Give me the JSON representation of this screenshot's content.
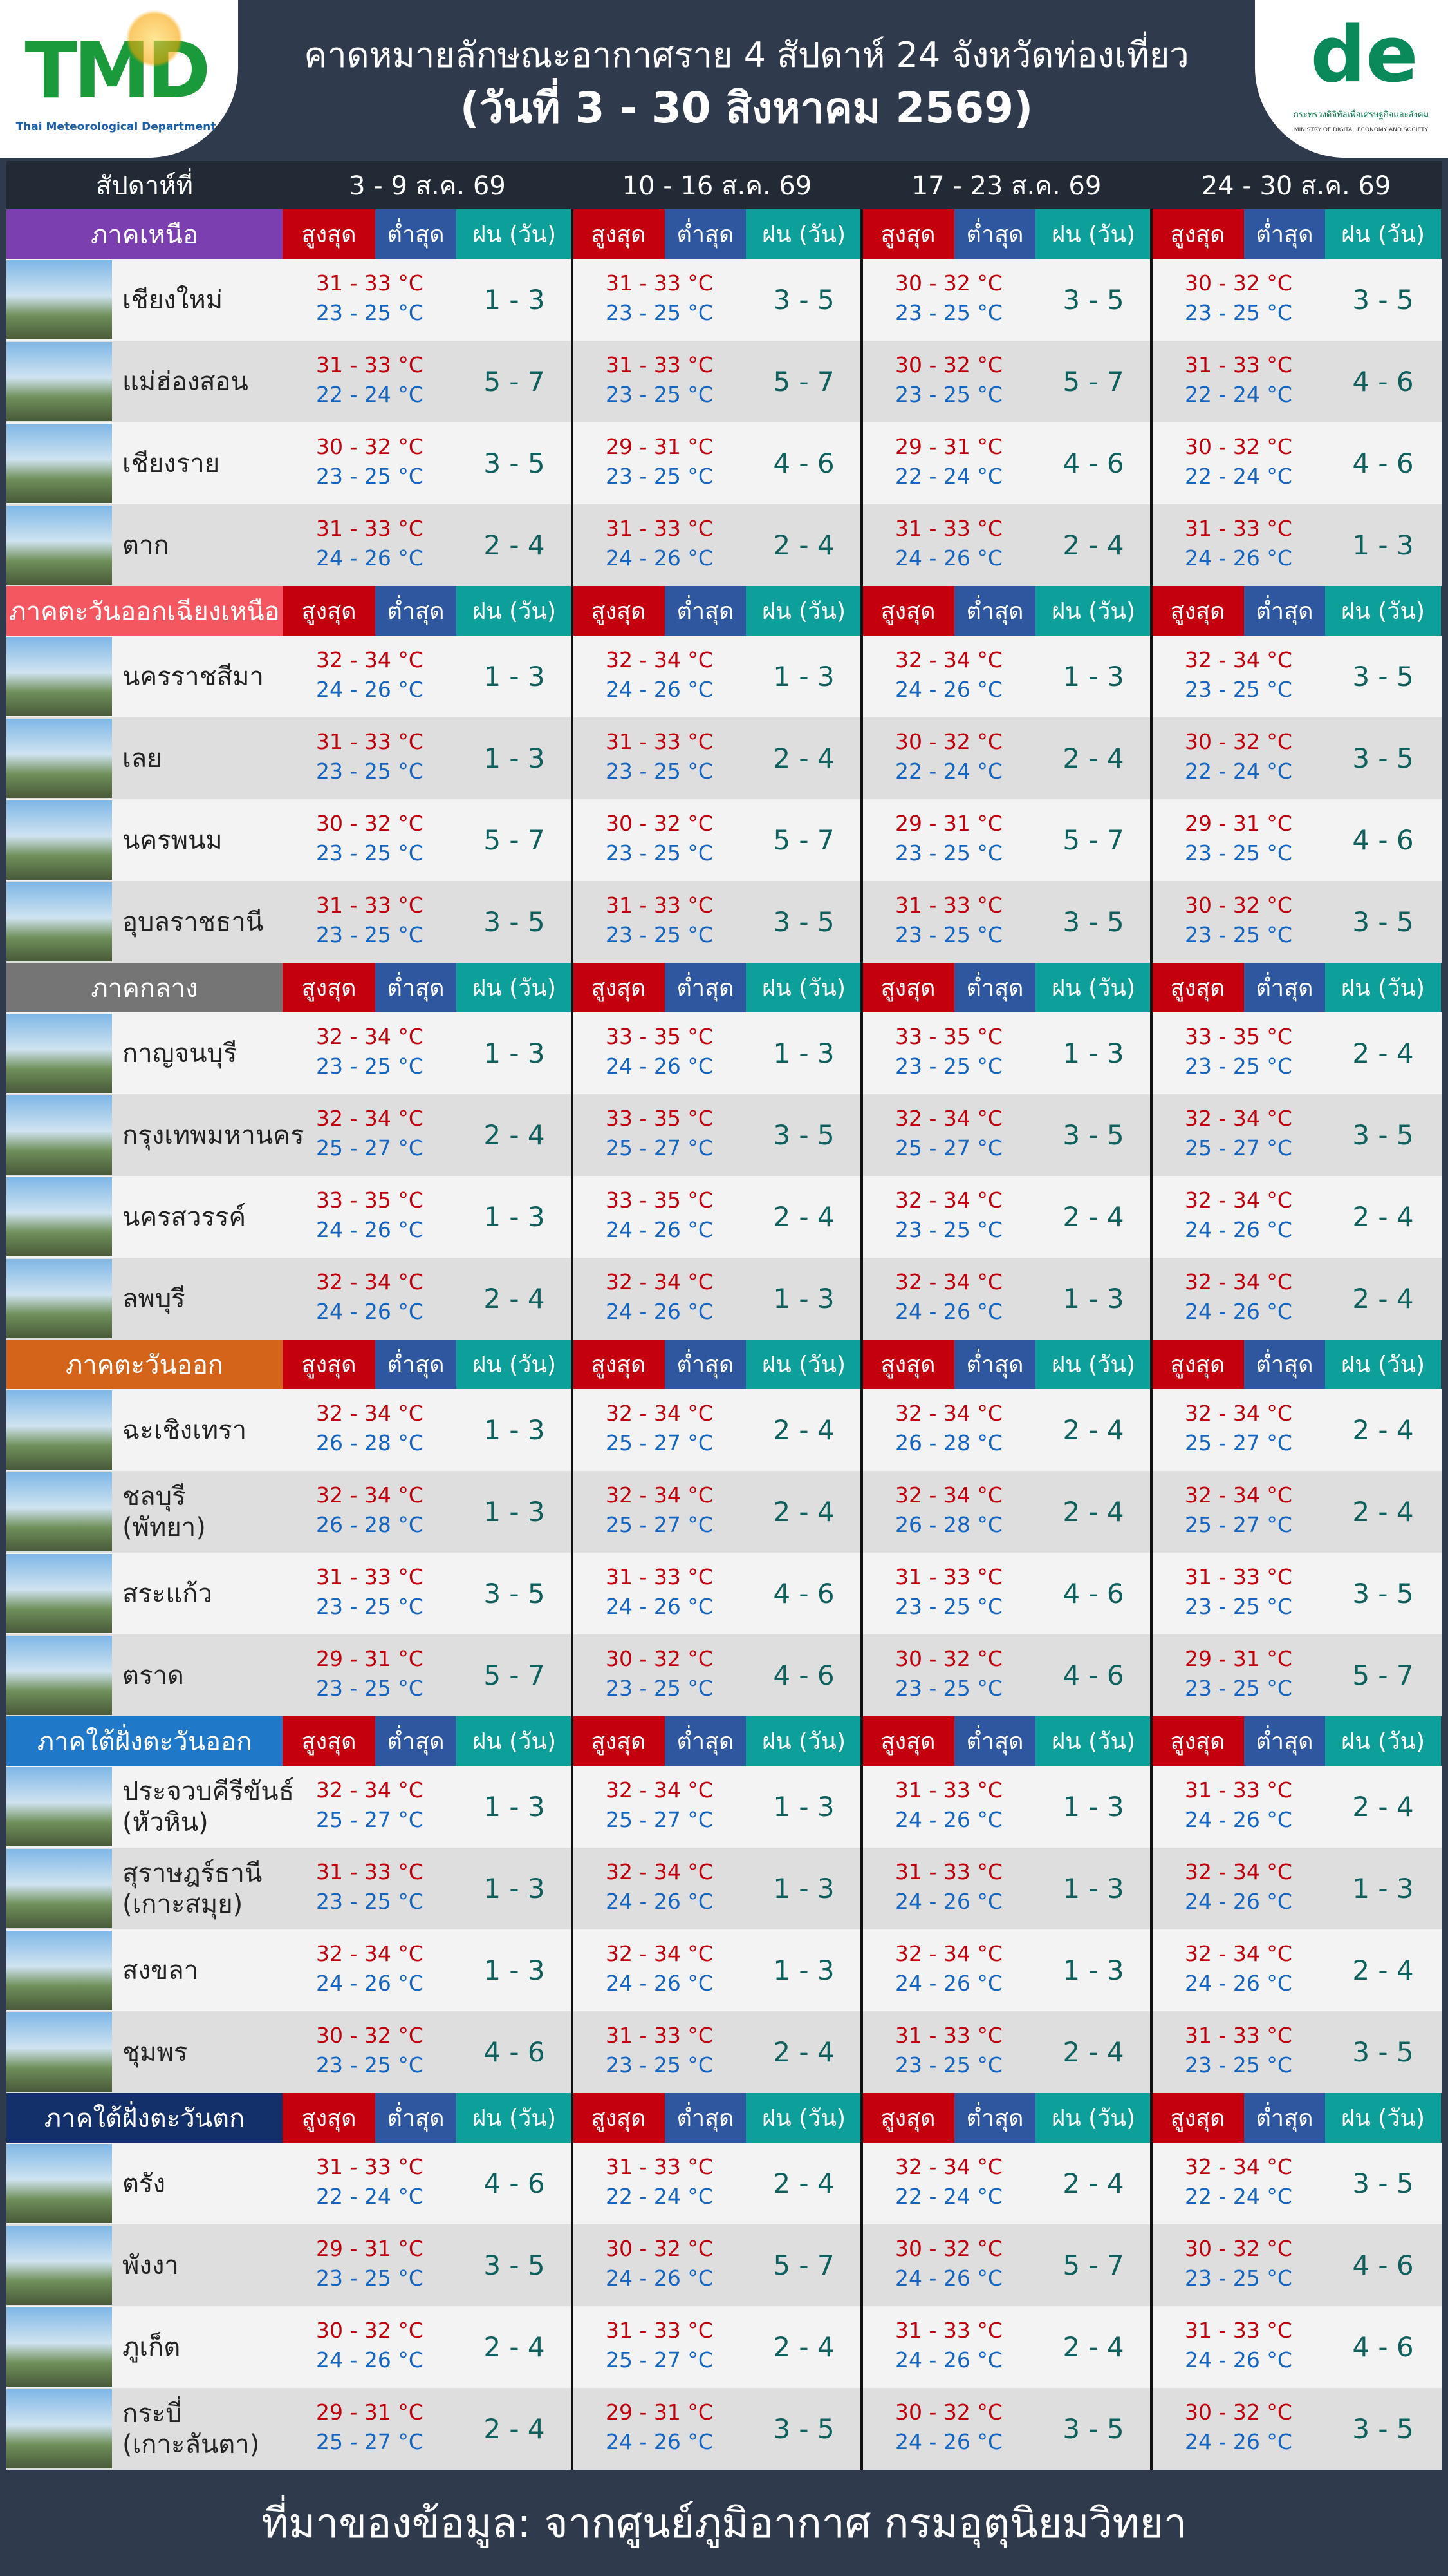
{
  "header": {
    "title": "คาดหมายลักษณะอากาศราย 4 สัปดาห์ 24 จังหวัดท่องเที่ยว",
    "subtitle": "(วันที่ 3 - 30 สิงหาคม 2569)",
    "left_logo": {
      "mark": "TMD",
      "caption": "Thai Meteorological Department"
    },
    "right_logo": {
      "caption_th": "กระทรวงดิจิทัลเพื่อเศรษฐกิจและสังคม",
      "caption_en": "MINISTRY OF DIGITAL ECONOMY AND SOCIETY"
    }
  },
  "table": {
    "week_label": "สัปดาห์ที่",
    "weeks": [
      "3 - 9 ส.ค. 69",
      "10 - 16 ส.ค. 69",
      "17 - 23 ส.ค. 69",
      "24 - 30 ส.ค. 69"
    ],
    "column_labels": {
      "max": "สูงสุด",
      "min": "ต่ำสุด",
      "rain": "ฝน (วัน)"
    },
    "regions": [
      {
        "name": "ภาคเหนือ",
        "color": "#7b3fb0",
        "provinces": [
          {
            "name": "เชียงใหม่",
            "forecast": [
              [
                "31 - 33 °C",
                "23 - 25 °C",
                "1 - 3"
              ],
              [
                "31 - 33 °C",
                "23 - 25 °C",
                "3 - 5"
              ],
              [
                "30 - 32 °C",
                "23 - 25 °C",
                "3 - 5"
              ],
              [
                "30 - 32 °C",
                "23 - 25 °C",
                "3 - 5"
              ]
            ]
          },
          {
            "name": "แม่ฮ่องสอน",
            "forecast": [
              [
                "31 - 33 °C",
                "22 - 24 °C",
                "5 - 7"
              ],
              [
                "31 - 33 °C",
                "23 - 25 °C",
                "5 - 7"
              ],
              [
                "30 - 32 °C",
                "23 - 25 °C",
                "5 - 7"
              ],
              [
                "31 - 33 °C",
                "22 - 24 °C",
                "4 - 6"
              ]
            ]
          },
          {
            "name": "เชียงราย",
            "forecast": [
              [
                "30 - 32 °C",
                "23 - 25 °C",
                "3 - 5"
              ],
              [
                "29 - 31 °C",
                "23 - 25 °C",
                "4 - 6"
              ],
              [
                "29 - 31 °C",
                "22 - 24 °C",
                "4 - 6"
              ],
              [
                "30 - 32 °C",
                "22 - 24 °C",
                "4 - 6"
              ]
            ]
          },
          {
            "name": "ตาก",
            "forecast": [
              [
                "31 - 33 °C",
                "24 - 26 °C",
                "2 - 4"
              ],
              [
                "31 - 33 °C",
                "24 - 26 °C",
                "2 - 4"
              ],
              [
                "31 - 33 °C",
                "24 - 26 °C",
                "2 - 4"
              ],
              [
                "31 - 33 °C",
                "24 - 26 °C",
                "1 - 3"
              ]
            ]
          }
        ]
      },
      {
        "name": "ภาคตะวันออกเฉียงเหนือ",
        "color": "#f4575f",
        "provinces": [
          {
            "name": "นครราชสีมา",
            "forecast": [
              [
                "32 - 34 °C",
                "24 - 26 °C",
                "1 - 3"
              ],
              [
                "32 - 34 °C",
                "24 - 26 °C",
                "1 - 3"
              ],
              [
                "32 - 34 °C",
                "24 - 26 °C",
                "1 - 3"
              ],
              [
                "32 - 34 °C",
                "23 - 25 °C",
                "3 - 5"
              ]
            ]
          },
          {
            "name": "เลย",
            "forecast": [
              [
                "31 - 33 °C",
                "23 - 25 °C",
                "1 - 3"
              ],
              [
                "31 - 33 °C",
                "23 - 25 °C",
                "2 - 4"
              ],
              [
                "30 - 32 °C",
                "22 - 24 °C",
                "2 - 4"
              ],
              [
                "30 - 32 °C",
                "22 - 24 °C",
                "3 - 5"
              ]
            ]
          },
          {
            "name": "นครพนม",
            "forecast": [
              [
                "30 - 32 °C",
                "23 - 25 °C",
                "5 - 7"
              ],
              [
                "30 - 32 °C",
                "23 - 25 °C",
                "5 - 7"
              ],
              [
                "29 - 31 °C",
                "23 - 25 °C",
                "5 - 7"
              ],
              [
                "29 - 31 °C",
                "23 - 25 °C",
                "4 - 6"
              ]
            ]
          },
          {
            "name": "อุบลราชธานี",
            "forecast": [
              [
                "31 - 33 °C",
                "23 - 25 °C",
                "3 - 5"
              ],
              [
                "31 - 33 °C",
                "23 - 25 °C",
                "3 - 5"
              ],
              [
                "31 - 33 °C",
                "23 - 25 °C",
                "3 - 5"
              ],
              [
                "30 - 32 °C",
                "23 - 25 °C",
                "3 - 5"
              ]
            ]
          }
        ]
      },
      {
        "name": "ภาคกลาง",
        "color": "#757575",
        "provinces": [
          {
            "name": "กาญจนบุรี",
            "forecast": [
              [
                "32 - 34 °C",
                "23 - 25 °C",
                "1 - 3"
              ],
              [
                "33 - 35 °C",
                "24 - 26 °C",
                "1 - 3"
              ],
              [
                "33 - 35 °C",
                "23 - 25 °C",
                "1 - 3"
              ],
              [
                "33 - 35 °C",
                "23 - 25 °C",
                "2 - 4"
              ]
            ]
          },
          {
            "name": "กรุงเทพมหานคร",
            "forecast": [
              [
                "32 - 34 °C",
                "25 - 27 °C",
                "2 - 4"
              ],
              [
                "33 - 35 °C",
                "25 - 27 °C",
                "3 - 5"
              ],
              [
                "32 - 34 °C",
                "25 - 27 °C",
                "3 - 5"
              ],
              [
                "32 - 34 °C",
                "25 - 27 °C",
                "3 - 5"
              ]
            ]
          },
          {
            "name": "นครสวรรค์",
            "forecast": [
              [
                "33 - 35 °C",
                "24 - 26 °C",
                "1 - 3"
              ],
              [
                "33 - 35 °C",
                "24 - 26 °C",
                "2 - 4"
              ],
              [
                "32 - 34 °C",
                "23 - 25 °C",
                "2 - 4"
              ],
              [
                "32 - 34 °C",
                "24 - 26 °C",
                "2 - 4"
              ]
            ]
          },
          {
            "name": "ลพบุรี",
            "forecast": [
              [
                "32 - 34 °C",
                "24 - 26 °C",
                "2 - 4"
              ],
              [
                "32 - 34 °C",
                "24 - 26 °C",
                "1 - 3"
              ],
              [
                "32 - 34 °C",
                "24 - 26 °C",
                "1 - 3"
              ],
              [
                "32 - 34 °C",
                "24 - 26 °C",
                "2 - 4"
              ]
            ]
          }
        ]
      },
      {
        "name": "ภาคตะวันออก",
        "color": "#d4641a",
        "provinces": [
          {
            "name": "ฉะเชิงเทรา",
            "forecast": [
              [
                "32 - 34 °C",
                "26 - 28 °C",
                "1 - 3"
              ],
              [
                "32 - 34 °C",
                "25 - 27 °C",
                "2 - 4"
              ],
              [
                "32 - 34 °C",
                "26 - 28 °C",
                "2 - 4"
              ],
              [
                "32 - 34 °C",
                "25 - 27 °C",
                "2 - 4"
              ]
            ]
          },
          {
            "name": "ชลบุรี\n(พัทยา)",
            "forecast": [
              [
                "32 - 34 °C",
                "26 - 28 °C",
                "1 - 3"
              ],
              [
                "32 - 34 °C",
                "25 - 27 °C",
                "2 - 4"
              ],
              [
                "32 - 34 °C",
                "26 - 28 °C",
                "2 - 4"
              ],
              [
                "32 - 34 °C",
                "25 - 27 °C",
                "2 - 4"
              ]
            ]
          },
          {
            "name": "สระแก้ว",
            "forecast": [
              [
                "31 - 33 °C",
                "23 - 25 °C",
                "3 - 5"
              ],
              [
                "31 - 33 °C",
                "24 - 26 °C",
                "4 - 6"
              ],
              [
                "31 - 33 °C",
                "23 - 25 °C",
                "4 - 6"
              ],
              [
                "31 - 33 °C",
                "23 - 25 °C",
                "3 - 5"
              ]
            ]
          },
          {
            "name": "ตราด",
            "forecast": [
              [
                "29 - 31 °C",
                "23 - 25 °C",
                "5 - 7"
              ],
              [
                "30 - 32 °C",
                "23 - 25 °C",
                "4 - 6"
              ],
              [
                "30 - 32 °C",
                "23 - 25 °C",
                "4 - 6"
              ],
              [
                "29 - 31 °C",
                "23 - 25 °C",
                "5 - 7"
              ]
            ]
          }
        ]
      },
      {
        "name": "ภาคใต้ฝั่งตะวันออก",
        "color": "#1f78c8",
        "provinces": [
          {
            "name": "ประจวบคีรีขันธ์\n(หัวหิน)",
            "forecast": [
              [
                "32 - 34 °C",
                "25 - 27 °C",
                "1 - 3"
              ],
              [
                "32 - 34 °C",
                "25 - 27 °C",
                "1 - 3"
              ],
              [
                "31 - 33 °C",
                "24 - 26 °C",
                "1 - 3"
              ],
              [
                "31 - 33 °C",
                "24 - 26 °C",
                "2 - 4"
              ]
            ]
          },
          {
            "name": "สุราษฎร์ธานี\n(เกาะสมุย)",
            "forecast": [
              [
                "31 - 33 °C",
                "23 - 25 °C",
                "1 - 3"
              ],
              [
                "32 - 34 °C",
                "24 - 26 °C",
                "1 - 3"
              ],
              [
                "31 - 33 °C",
                "24 - 26 °C",
                "1 - 3"
              ],
              [
                "32 - 34 °C",
                "24 - 26 °C",
                "1 - 3"
              ]
            ]
          },
          {
            "name": "สงขลา",
            "forecast": [
              [
                "32 - 34 °C",
                "24 - 26 °C",
                "1 - 3"
              ],
              [
                "32 - 34 °C",
                "24 - 26 °C",
                "1 - 3"
              ],
              [
                "32 - 34 °C",
                "24 - 26 °C",
                "1 - 3"
              ],
              [
                "32 - 34 °C",
                "24 - 26 °C",
                "2 - 4"
              ]
            ]
          },
          {
            "name": "ชุมพร",
            "forecast": [
              [
                "30 - 32 °C",
                "23 - 25 °C",
                "4 - 6"
              ],
              [
                "31 - 33 °C",
                "23 - 25 °C",
                "2 - 4"
              ],
              [
                "31 - 33 °C",
                "23 - 25 °C",
                "2 - 4"
              ],
              [
                "31 - 33 °C",
                "23 - 25 °C",
                "3 - 5"
              ]
            ]
          }
        ]
      },
      {
        "name": "ภาคใต้ฝั่งตะวันตก",
        "color": "#14306a",
        "provinces": [
          {
            "name": "ตรัง",
            "forecast": [
              [
                "31 - 33 °C",
                "22 - 24 °C",
                "4 - 6"
              ],
              [
                "31 - 33 °C",
                "22 - 24 °C",
                "2 - 4"
              ],
              [
                "32 - 34 °C",
                "22 - 24 °C",
                "2 - 4"
              ],
              [
                "32 - 34 °C",
                "22 - 24 °C",
                "3 - 5"
              ]
            ]
          },
          {
            "name": "พังงา",
            "forecast": [
              [
                "29 - 31 °C",
                "23 - 25 °C",
                "3 - 5"
              ],
              [
                "30 - 32 °C",
                "24 - 26 °C",
                "5 - 7"
              ],
              [
                "30 - 32 °C",
                "24 - 26 °C",
                "5 - 7"
              ],
              [
                "30 - 32 °C",
                "23 - 25 °C",
                "4 - 6"
              ]
            ]
          },
          {
            "name": "ภูเก็ต",
            "forecast": [
              [
                "30 - 32 °C",
                "24 - 26 °C",
                "2 - 4"
              ],
              [
                "31 - 33 °C",
                "25 - 27 °C",
                "2 - 4"
              ],
              [
                "31 - 33 °C",
                "24 - 26 °C",
                "2 - 4"
              ],
              [
                "31 - 33 °C",
                "24 - 26 °C",
                "4 - 6"
              ]
            ]
          },
          {
            "name": "กระบี่\n(เกาะลันตา)",
            "forecast": [
              [
                "29 - 31 °C",
                "25 - 27 °C",
                "2 - 4"
              ],
              [
                "29 - 31 °C",
                "24 - 26 °C",
                "3 - 5"
              ],
              [
                "30 - 32 °C",
                "24 - 26 °C",
                "3 - 5"
              ],
              [
                "30 - 32 °C",
                "24 - 26 °C",
                "3 - 5"
              ]
            ]
          }
        ]
      }
    ]
  },
  "footer": {
    "source": "ที่มาของข้อมูล: จากศูนย์ภูมิอากาศ กรมอุตุนิยมวิทยา"
  }
}
